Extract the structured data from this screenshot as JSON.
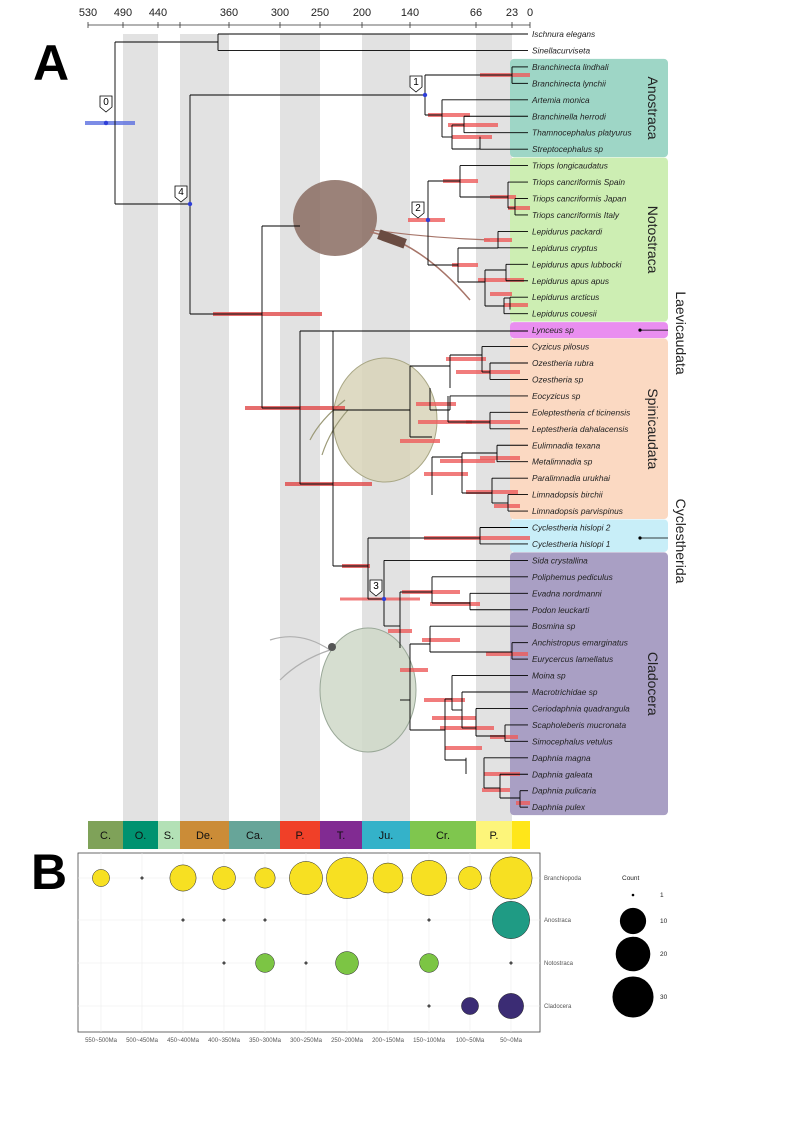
{
  "panel_a_label": "A",
  "panel_b_label": "B",
  "time_axis": [
    530,
    490,
    440,
    360,
    300,
    250,
    200,
    140,
    66,
    23,
    0
  ],
  "taxa": [
    "Ischnura elegans",
    "Sinellacurviseta",
    "Branchinecta lindhali",
    "Branchinecta lynchii",
    "Artemia monica",
    "Branchinella herrodi",
    "Thamnocephalus platyurus",
    "Streptocephalus sp",
    "Triops longicaudatus",
    "Triops cancriformis Spain",
    "Triops cancriformis Japan",
    "Triops cancriformis Italy",
    "Lepidurus packardi",
    "Lepidurus cryptus",
    "Lepidurus apus lubbocki",
    "Lepidurus apus apus",
    "Lepidurus arcticus",
    "Lepidurus couesii",
    "Lynceus sp",
    "Cyzicus pilosus",
    "Ozestheria rubra",
    "Ozestheria sp",
    "Eocyzicus sp",
    "Eoleptestheria cf ticinensis",
    "Leptestheria dahalacensis",
    "Eulimnadia texana",
    "Metalimnadia sp",
    "Paralimnadia urukhai",
    "Limnadopsis birchii",
    "Limnadopsis parvispinus",
    "Cyclestheria hislopi 2",
    "Cyclestheria hislopi 1",
    "Sida crystallina",
    "Poliphemus pediculus",
    "Evadna nordmanni",
    "Podon leuckarti",
    "Bosmina sp",
    "Anchistropus emarginatus",
    "Eurycercus lamellatus",
    "Moina sp",
    "Macrotrichidae sp",
    "Ceriodaphnia quadrangula",
    "Scapholeberis mucronata",
    "Simocephalus vetulus",
    "Daphnia magna",
    "Daphnia galeata",
    "Daphnia pulicaria",
    "Daphnia pulex"
  ],
  "clades": [
    {
      "name": "Anostraca",
      "color": "#9ed6c6"
    },
    {
      "name": "Notostraca",
      "color": "#cdeeb3"
    },
    {
      "name": "Laevicaudata",
      "color": "#e98ef0"
    },
    {
      "name": "Spinicaudata",
      "color": "#fbd9c2"
    },
    {
      "name": "Cyclestherida",
      "color": "#c8eef8"
    },
    {
      "name": "Cladocera",
      "color": "#a99fc4"
    }
  ],
  "node_labels": [
    "0",
    "1",
    "2",
    "3",
    "4"
  ],
  "periods": [
    {
      "name": "C.",
      "color": "#7fa259"
    },
    {
      "name": "O.",
      "color": "#009270"
    },
    {
      "name": "S.",
      "color": "#b3e1b6"
    },
    {
      "name": "De.",
      "color": "#cb8c37"
    },
    {
      "name": "Ca.",
      "color": "#67a599"
    },
    {
      "name": "P.",
      "color": "#f04028"
    },
    {
      "name": "T.",
      "color": "#812b92"
    },
    {
      "name": "Ju.",
      "color": "#34b2c9"
    },
    {
      "name": "Cr.",
      "color": "#7fc64e"
    },
    {
      "name": "P.",
      "color": "#fdf57a"
    },
    {
      "name": "",
      "color": "#ffe619"
    }
  ],
  "chart_data": {
    "type": "scatter",
    "x_categories": [
      "550~500Ma",
      "500~450Ma",
      "450~400Ma",
      "400~350Ma",
      "350~300Ma",
      "300~250Ma",
      "250~200Ma",
      "200~150Ma",
      "150~100Ma",
      "100~50Ma",
      "50~0Ma"
    ],
    "series": [
      {
        "name": "Branchiopoda",
        "color": "#f7e022",
        "values": [
          3,
          1,
          10,
          7,
          5,
          18,
          30,
          14,
          21,
          7,
          32
        ]
      },
      {
        "name": "Anostraca",
        "color": "#1f9b84",
        "values": [
          0,
          0,
          1,
          1,
          1,
          0,
          0,
          0,
          1,
          0,
          24
        ]
      },
      {
        "name": "Notostraca",
        "color": "#7cc544",
        "values": [
          0,
          0,
          0,
          1,
          4,
          1,
          7,
          0,
          4,
          0,
          1
        ]
      },
      {
        "name": "Cladocera",
        "color": "#3b2c74",
        "values": [
          0,
          0,
          0,
          0,
          0,
          0,
          0,
          0,
          1,
          3,
          9
        ]
      }
    ],
    "legend_title": "Count",
    "legend_values": [
      1,
      10,
      20,
      30
    ]
  }
}
